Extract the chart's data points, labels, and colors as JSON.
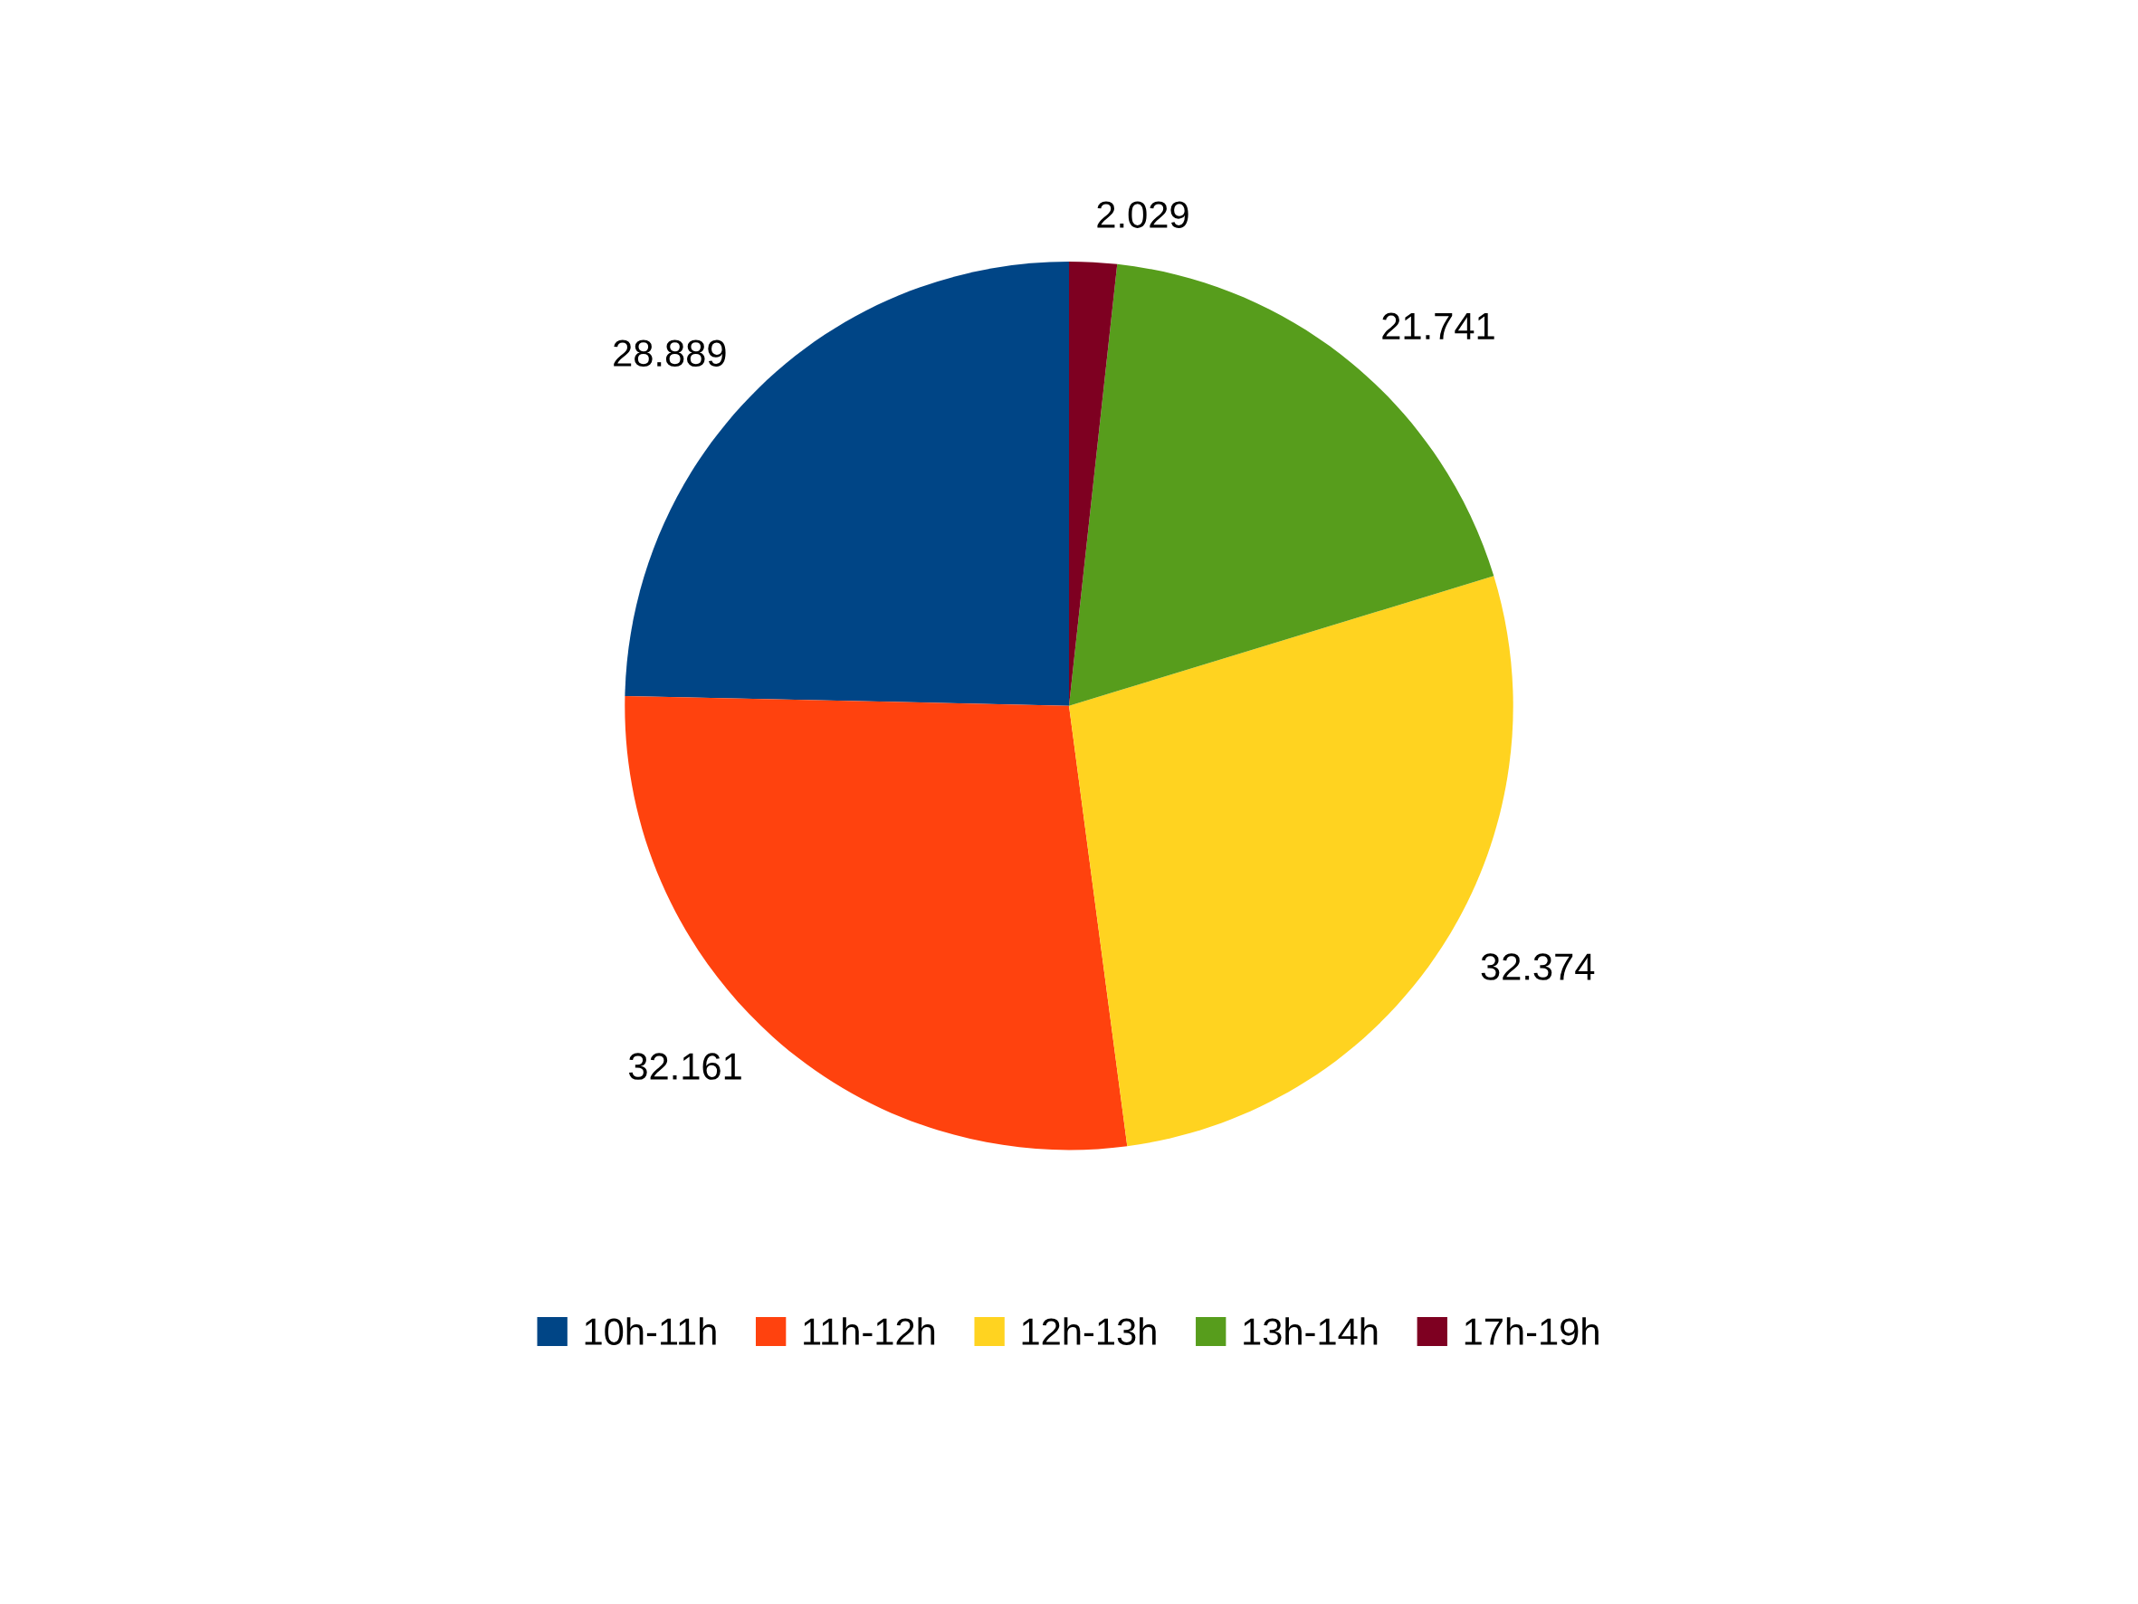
{
  "chart_data": {
    "type": "pie",
    "categories": [
      "10h-11h",
      "11h-12h",
      "12h-13h",
      "13h-14h",
      "17h-19h"
    ],
    "values": [
      28.889,
      32.161,
      32.374,
      21.741,
      2.029
    ],
    "colors": [
      "#004586",
      "#ff420e",
      "#ffd320",
      "#579d1c",
      "#7e0021"
    ],
    "data_labels": true,
    "legend": "bottom"
  }
}
